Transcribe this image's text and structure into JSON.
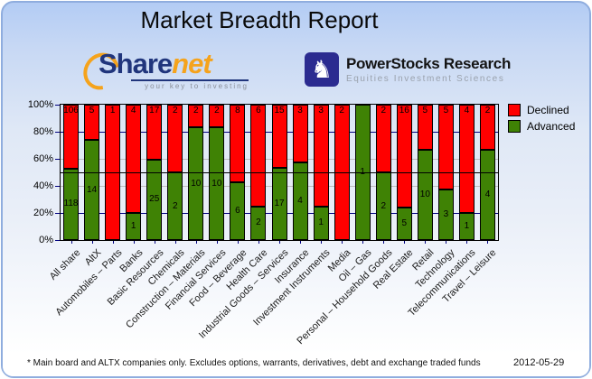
{
  "window": {
    "title": "Market Breadth Report"
  },
  "header": {
    "sharenet_logo": {
      "brand_share": "Share",
      "brand_net": "net",
      "tagline": "your key to investing",
      "arc_color": "#f5a31c"
    },
    "powerstocks_logo": {
      "name": "PowerStocks Research",
      "subtitle": "Equities Investment Sciences",
      "knight_icon": "chess-knight-icon",
      "box_color": "#2b2b90"
    }
  },
  "legend": {
    "items": [
      {
        "label": "Declined",
        "color": "#ff0000"
      },
      {
        "label": "Advanced",
        "color": "#3f8205"
      }
    ]
  },
  "footer": {
    "note": "* Main board and ALTX companies only. Excludes options, warrants, derivatives, debt and exchange traded funds",
    "date": "2012-05-29"
  },
  "chart_data": {
    "type": "bar",
    "stacked": true,
    "percent_stacked": true,
    "title": "Market Breadth Report",
    "categories": [
      "All share",
      "AltX",
      "Automobiles – Parts",
      "Banks",
      "Basic Resources",
      "Chemicals",
      "Construction – Materials",
      "Financial Services",
      "Food – Beverage",
      "Health Care",
      "Industrial Goods – Services",
      "Insurance",
      "Investment Instruments",
      "Media",
      "Oil – Gas",
      "Personal – Household Goods",
      "Real Estate",
      "Retail",
      "Technology",
      "Telecommunications",
      "Travel – Leisure"
    ],
    "series": [
      {
        "name": "Declined",
        "color": "#ff0000",
        "values": [
          106,
          5,
          1,
          4,
          17,
          2,
          2,
          2,
          8,
          6,
          15,
          3,
          3,
          2,
          0,
          2,
          16,
          5,
          5,
          4,
          2
        ]
      },
      {
        "name": "Advanced",
        "color": "#3f8205",
        "values": [
          118,
          14,
          0,
          1,
          25,
          2,
          10,
          10,
          6,
          2,
          17,
          4,
          1,
          0,
          1,
          2,
          5,
          10,
          3,
          1,
          4
        ]
      }
    ],
    "y_axis": {
      "min": 0,
      "max": 100,
      "tick_step": 20,
      "tick_labels": [
        "0%",
        "20%",
        "40%",
        "60%",
        "80%",
        "100%"
      ]
    },
    "gridlines": {
      "navy_at": [
        20,
        80
      ],
      "gray_at": [
        40,
        60
      ],
      "black_overlay_at": 50,
      "navy_color": "#000080",
      "gray_color": "#bdbdbd"
    },
    "legend_position": "top-right"
  }
}
